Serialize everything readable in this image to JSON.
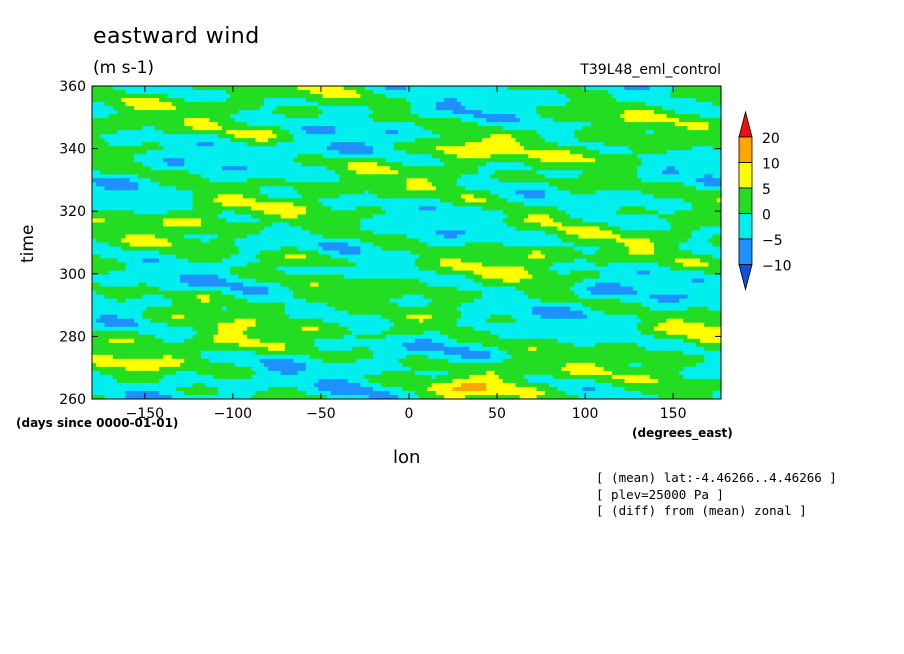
{
  "header": {
    "title": "eastward wind",
    "units": "(m s-1)",
    "run_id": "T39L48_eml_control"
  },
  "axes": {
    "xlabel": "lon",
    "x_units": "(degrees_east)",
    "ylabel": "time",
    "y_units": "(days since 0000-01-01)"
  },
  "notes": [
    "[ (mean) lat:-4.46266..4.46266 ]",
    "[ plev=25000 Pa ]",
    "[ (diff) from (mean) zonal ]"
  ],
  "colorbar": {
    "levels": [
      "20",
      "10",
      "5",
      "0",
      "-5",
      "-10"
    ],
    "colors": [
      "#ee1111",
      "#ffa500",
      "#ffff00",
      "#22dd22",
      "#00eeee",
      "#1e90ff",
      "#1050dd"
    ]
  },
  "chart_data": {
    "type": "heatmap",
    "title": "eastward wind",
    "subtitle": "(m s-1)",
    "xlabel": "lon",
    "ylabel": "time",
    "xlim": [
      -180,
      177.1875
    ],
    "ylim": [
      260,
      360
    ],
    "x_ticks": [
      -150,
      -100,
      -50,
      0,
      50,
      100,
      150
    ],
    "y_ticks": [
      260,
      280,
      300,
      320,
      340,
      360
    ],
    "contour_levels": [
      -10,
      -5,
      0,
      5,
      10,
      20
    ],
    "colors": {
      "below_-10": "#1050dd",
      "-10_to_-5": "#1e90ff",
      "-5_to_0": "#00eeee",
      "0_to_5": "#22dd22",
      "5_to_10": "#ffff00",
      "10_to_20": "#ffa500",
      "above_20": "#ee1111"
    },
    "features": [
      {
        "lon": -50,
        "time": 340,
        "value": -9
      },
      {
        "lon": 30,
        "time": 340,
        "value": 12
      },
      {
        "lon": -80,
        "time": 345,
        "value": 7
      },
      {
        "lon": 120,
        "time": 338,
        "value": 8
      },
      {
        "lon": 100,
        "time": 328,
        "value": 9
      },
      {
        "lon": -120,
        "time": 318,
        "value": 7
      },
      {
        "lon": 80,
        "time": 318,
        "value": 8
      },
      {
        "lon": -60,
        "time": 305,
        "value": 11
      },
      {
        "lon": 60,
        "time": 305,
        "value": 7
      },
      {
        "lon": -120,
        "time": 292,
        "value": 6
      },
      {
        "lon": -20,
        "time": 290,
        "value": -7
      },
      {
        "lon": 110,
        "time": 295,
        "value": -8
      },
      {
        "lon": -100,
        "time": 278,
        "value": 8
      },
      {
        "lon": 0,
        "time": 282,
        "value": 7
      },
      {
        "lon": 165,
        "time": 283,
        "value": 9
      },
      {
        "lon": -160,
        "time": 270,
        "value": 7
      },
      {
        "lon": 60,
        "time": 270,
        "value": 8
      },
      {
        "lon": 40,
        "time": 264,
        "value": 12
      },
      {
        "lon": -30,
        "time": 262,
        "value": -7
      },
      {
        "lon": 150,
        "time": 262,
        "value": 6
      }
    ]
  }
}
